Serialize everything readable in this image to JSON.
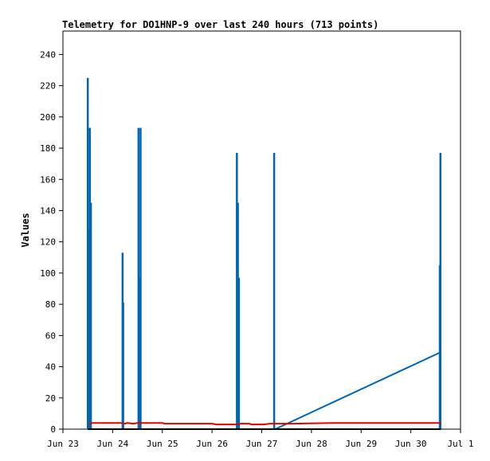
{
  "chart_data": {
    "type": "line",
    "title": "Telemetry for DO1HNP-9 over last 240 hours (713 points)",
    "xlabel": "",
    "ylabel": "Values",
    "ylim": [
      0,
      255
    ],
    "xlim": [
      0,
      192
    ],
    "xticks": [
      {
        "x": 0,
        "label": "Jun 23"
      },
      {
        "x": 24,
        "label": "Jun 24"
      },
      {
        "x": 48,
        "label": "Jun 25"
      },
      {
        "x": 72,
        "label": "Jun 26"
      },
      {
        "x": 96,
        "label": "Jun 27"
      },
      {
        "x": 120,
        "label": "Jun 28"
      },
      {
        "x": 144,
        "label": "Jun 29"
      },
      {
        "x": 168,
        "label": "Jun 30"
      },
      {
        "x": 192,
        "label": "Jul 1"
      }
    ],
    "yticks": [
      0,
      20,
      40,
      60,
      80,
      100,
      120,
      140,
      160,
      180,
      200,
      220,
      240
    ],
    "grid": false,
    "legend": "none",
    "series": [
      {
        "color": "#0066b3",
        "style": "spikes",
        "points": [
          [
            12.0,
            225
          ],
          [
            12.3,
            128
          ],
          [
            13.0,
            193
          ],
          [
            13.5,
            145
          ],
          [
            28.8,
            113
          ],
          [
            29.1,
            81
          ],
          [
            36.5,
            193
          ],
          [
            37.0,
            97
          ],
          [
            37.5,
            193
          ],
          [
            84.0,
            177
          ],
          [
            84.5,
            145
          ],
          [
            85.0,
            97
          ],
          [
            102.0,
            177
          ],
          [
            182.0,
            105
          ],
          [
            182.3,
            177
          ]
        ]
      },
      {
        "color": "#0066b3",
        "style": "line",
        "points": [
          [
            102.5,
            0
          ],
          [
            182.0,
            49
          ]
        ]
      },
      {
        "color": "#dd0000",
        "style": "line",
        "points": [
          [
            12.5,
            3
          ],
          [
            14,
            4
          ],
          [
            24,
            4
          ],
          [
            28,
            4
          ],
          [
            30,
            3.5
          ],
          [
            31,
            4
          ],
          [
            34,
            3.5
          ],
          [
            36,
            4
          ],
          [
            48,
            4
          ],
          [
            49,
            3.5
          ],
          [
            60,
            3.5
          ],
          [
            72,
            3.5
          ],
          [
            74,
            3
          ],
          [
            84,
            3
          ],
          [
            86,
            3.5
          ],
          [
            90,
            3.5
          ],
          [
            91,
            3
          ],
          [
            97,
            3
          ],
          [
            100,
            3.5
          ],
          [
            112,
            3.5
          ],
          [
            130,
            4
          ],
          [
            160,
            4
          ],
          [
            182.5,
            4
          ]
        ]
      },
      {
        "color": "#000000",
        "style": "line",
        "points": [
          [
            12.0,
            0
          ],
          [
            182.5,
            0
          ]
        ]
      }
    ]
  }
}
